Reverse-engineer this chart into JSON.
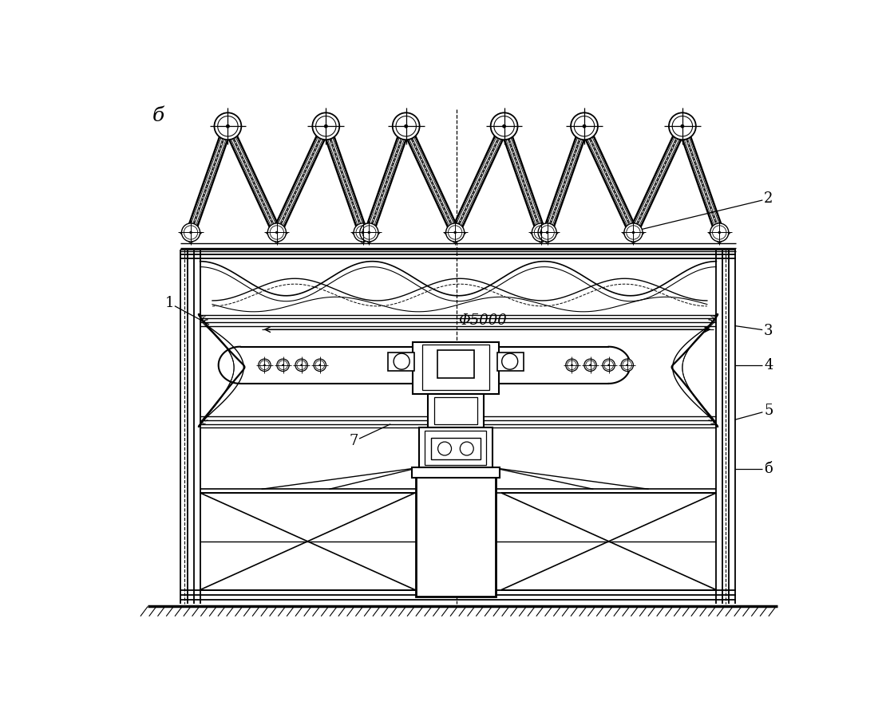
{
  "title_label": "б",
  "dim_label": "Φ5000",
  "background_color": "#ffffff",
  "line_color": "#000000",
  "label_2": "2",
  "label_3": "3",
  "label_4": "4",
  "label_5": "5",
  "label_6": "б",
  "label_7": "7",
  "label_1": "1"
}
